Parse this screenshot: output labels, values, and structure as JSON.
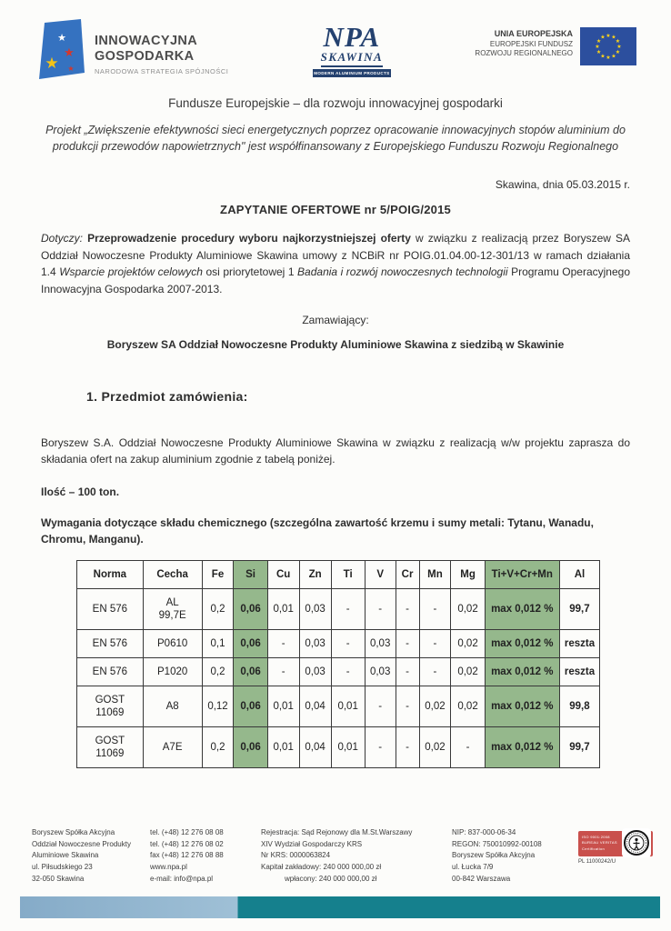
{
  "logos": {
    "innowacyjna": {
      "line1": "INNOWACYJNA",
      "line2": "GOSPODARKA",
      "subtitle": "NARODOWA STRATEGIA SPÓJNOŚCI"
    },
    "npa": {
      "acronym": "NPA",
      "name": "SKAWINA",
      "tagline": "MODERN ALUMINIUM PRODUCTS"
    },
    "eu": {
      "line1": "UNIA EUROPEJSKA",
      "line2": "EUROPEJSKI FUNDUSZ",
      "line3": "ROZWOJU REGIONALNEGO"
    }
  },
  "intro": {
    "tagline": "Fundusze Europejskie – dla rozwoju innowacyjnej gospodarki",
    "project": "Projekt „Zwiększenie efektywności sieci energetycznych poprzez opracowanie innowacyjnych stopów aluminium do produkcji przewodów napowietrznych\" jest współfinansowany z Europejskiego Funduszu Rozwoju Regionalnego",
    "date_line": "Skawina, dnia 05.03.2015 r.",
    "rfq_title": "ZAPYTANIE OFERTOWE nr 5/POIG/2015"
  },
  "dotyczy": {
    "label": "Dotyczy:",
    "bold": "Przeprowadzenie procedury wyboru najkorzystniejszej oferty",
    "text1": "w związku z realizacją przez Boryszew SA Oddział Nowoczesne Produkty Aluminiowe Skawina umowy z NCBiR nr POIG.01.04.00-12-301/13 w ramach działania 1.4",
    "italic1": "Wsparcie projektów celowych",
    "text2": "osi priorytetowej 1",
    "italic2": "Badania i rozwój nowoczesnych technologii",
    "text3": "Programu Operacyjnego Innowacyjna Gospodarka 2007-2013."
  },
  "ordering": {
    "label": "Zamawiający:",
    "company": "Boryszew SA Oddział Nowoczesne Produkty Aluminiowe Skawina z siedzibą w Skawinie"
  },
  "section1": {
    "heading": "1. Przedmiot zamówienia:",
    "paragraph": "Boryszew S.A. Oddział Nowoczesne Produkty Aluminiowe Skawina w związku z realizacją w/w projektu zaprasza do składania ofert na zakup aluminium zgodnie z tabelą poniżej.",
    "quantity": "Ilość – 100 ton.",
    "requirements": "Wymagania dotyczące składu chemicznego (szczególna zawartość krzemu i sumy metali: Tytanu, Wanadu, Chromu, Manganu)."
  },
  "table": {
    "columns": [
      "Norma",
      "Cecha",
      "Fe",
      "Si",
      "Cu",
      "Zn",
      "Ti",
      "V",
      "Cr",
      "Mn",
      "Mg",
      "Ti+V+Cr+Mn",
      "Al"
    ],
    "highlight_columns": [
      3,
      11
    ],
    "bold_columns": [
      3,
      11,
      12
    ],
    "rows": [
      [
        "EN 576",
        "AL\n99,7E",
        "0,2",
        "0,06",
        "0,01",
        "0,03",
        "-",
        "-",
        "-",
        "-",
        "0,02",
        "max 0,012 %",
        "99,7"
      ],
      [
        "EN 576",
        "P0610",
        "0,1",
        "0,06",
        "-",
        "0,03",
        "-",
        "0,03",
        "-",
        "-",
        "0,02",
        "max 0,012 %",
        "reszta"
      ],
      [
        "EN 576",
        "P1020",
        "0,2",
        "0,06",
        "-",
        "0,03",
        "-",
        "0,03",
        "-",
        "-",
        "0,02",
        "max 0,012 %",
        "reszta"
      ],
      [
        "GOST\n11069",
        "A8",
        "0,12",
        "0,06",
        "0,01",
        "0,04",
        "0,01",
        "-",
        "-",
        "0,02",
        "0,02",
        "max 0,012 %",
        "99,8"
      ],
      [
        "GOST\n11069",
        "A7E",
        "0,2",
        "0,06",
        "0,01",
        "0,04",
        "0,01",
        "-",
        "-",
        "0,02",
        "-",
        "max 0,012 %",
        "99,7"
      ]
    ]
  },
  "footer": {
    "columns": [
      [
        "Boryszew Spółka Akcyjna",
        "Oddział Nowoczesne Produkty",
        "Aluminiowe Skawina",
        "ul. Piłsudskiego 23",
        "32-050 Skawina"
      ],
      [
        "tel. (+48) 12 276 08 08",
        "tel. (+48) 12 276 08 02",
        "fax (+48) 12 276 08 88",
        "www.npa.pl",
        "e-mail: info@npa.pl"
      ],
      [
        "Rejestracja: Sąd Rejonowy dla M.St.Warszawy",
        "XIV Wydział Gospodarczy KRS",
        "Nr KRS: 0000063824",
        "Kapitał zakładowy: 240 000 000,00 zł",
        "wpłacony: 240 000 000,00 zł"
      ],
      [
        "NIP: 837-000-06-34",
        "REGON: 750010992-00108",
        "Boryszew Spółka Akcyjna",
        "ul. Łucka 7/9",
        "00-842 Warszawa"
      ]
    ],
    "badge": {
      "iso_line": "ISO 9001:2008",
      "bv_line": "BUREAU VERITAS",
      "cert_line": "Certification",
      "code": "PL 11000242/U"
    }
  },
  "colors": {
    "highlight_green": "#95b88c",
    "bar_teal": "#15808d",
    "bar_light_blue": "#9fc0d6",
    "bar_light_blue_dark": "#85abc8",
    "badge_red": "#c9504c",
    "navy": "#24416f",
    "eu_blue": "#2c4f9e",
    "flag_blue": "#3572c0",
    "star_yellow": "#f3c317",
    "star_red": "#d4372c"
  }
}
